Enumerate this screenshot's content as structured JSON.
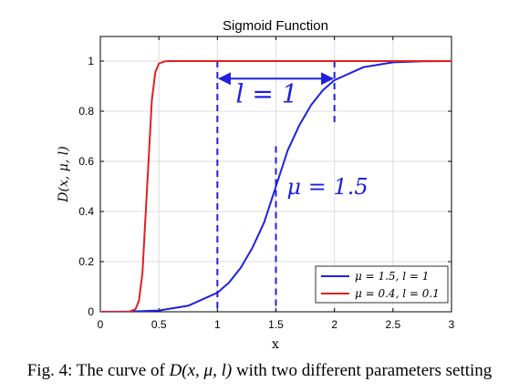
{
  "chart_data": {
    "type": "line",
    "title": "Sigmoid Function",
    "xlabel": "x",
    "ylabel": "D(x, μ, l)",
    "xlim": [
      0,
      3
    ],
    "ylim": [
      0,
      1.1
    ],
    "xticks": [
      0,
      0.5,
      1,
      1.5,
      2,
      2.5,
      3
    ],
    "xtick_labels": [
      "0",
      "0.5",
      "1",
      "1.5",
      "2",
      "2.5",
      "3"
    ],
    "yticks": [
      0,
      0.2,
      0.4,
      0.6,
      0.8,
      1
    ],
    "ytick_labels": [
      "0",
      "0.2",
      "0.4",
      "0.6",
      "0.8",
      "1"
    ],
    "grid": true,
    "legend_position": "bottom-right",
    "series": [
      {
        "name": "μ = 1.5, l = 1",
        "color": "#2020e0",
        "x": [
          0,
          0.25,
          0.5,
          0.75,
          1.0,
          1.1,
          1.2,
          1.3,
          1.4,
          1.5,
          1.6,
          1.7,
          1.8,
          1.9,
          2.0,
          2.25,
          2.5,
          2.75,
          3.0
        ],
        "values": [
          0.0,
          0.001,
          0.005,
          0.024,
          0.076,
          0.117,
          0.176,
          0.256,
          0.357,
          0.5,
          0.643,
          0.744,
          0.824,
          0.883,
          0.924,
          0.976,
          0.995,
          0.999,
          1.0
        ]
      },
      {
        "name": "μ = 0.4, l = 0.1",
        "color": "#e02020",
        "x": [
          0,
          0.2,
          0.25,
          0.3,
          0.33,
          0.36,
          0.38,
          0.4,
          0.42,
          0.44,
          0.47,
          0.5,
          0.55,
          0.6,
          1.0,
          3.0
        ],
        "values": [
          0.0,
          0.0,
          0.001,
          0.01,
          0.044,
          0.156,
          0.329,
          0.5,
          0.671,
          0.844,
          0.956,
          0.99,
          0.999,
          1.0,
          1.0,
          1.0
        ]
      }
    ],
    "annotations": {
      "l_label": "l = 1",
      "mu_label": "μ = 1.5",
      "l_arrow_x": [
        1,
        2
      ],
      "l_arrow_y": 0.93,
      "mu_line_x": 1.5
    }
  },
  "caption": {
    "prefix": "Fig. 4: The curve of ",
    "math": "D(x, μ, l)",
    "suffix": " with two different parameters setting"
  }
}
